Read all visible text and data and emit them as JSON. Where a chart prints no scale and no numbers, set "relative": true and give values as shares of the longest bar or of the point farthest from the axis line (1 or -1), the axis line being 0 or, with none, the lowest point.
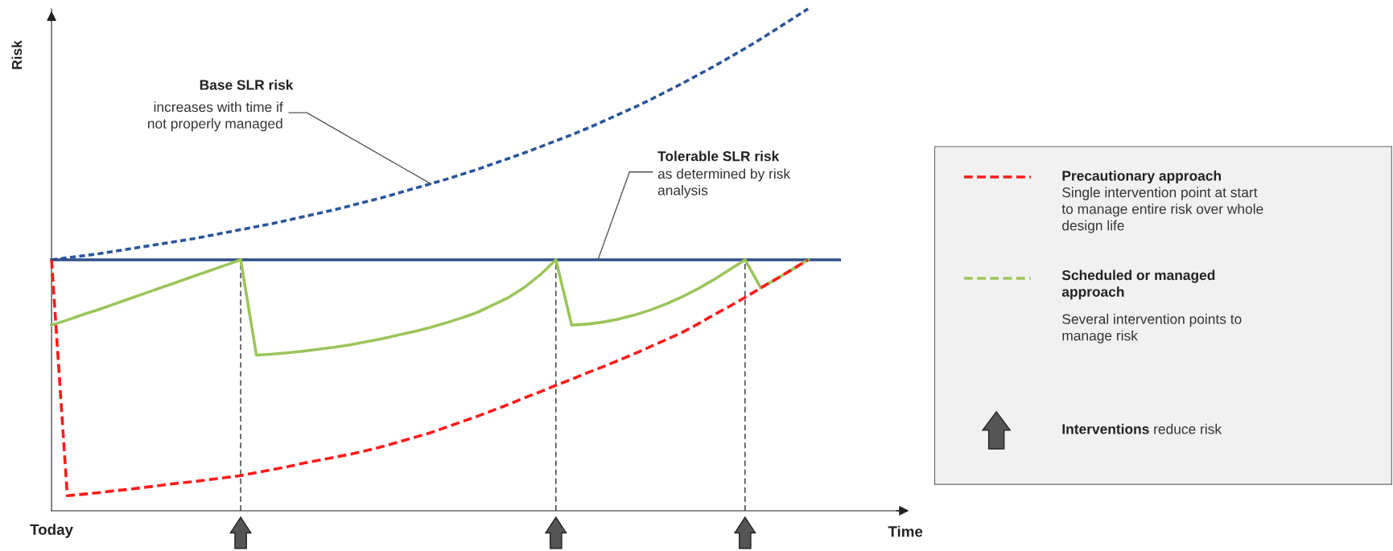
{
  "chart_data": {
    "type": "line",
    "relative": true,
    "xlabel": "Time",
    "ylabel": "Risk",
    "legend": "right",
    "grid": false,
    "categories": [
      null,
      null,
      null,
      null,
      null,
      null,
      null,
      null,
      null,
      null,
      null,
      null,
      null,
      null,
      null,
      null,
      null,
      null,
      null,
      null,
      null,
      null,
      null,
      null,
      null,
      null,
      null,
      null,
      null,
      null,
      null,
      null,
      null,
      null,
      null,
      null,
      null,
      null,
      null,
      null,
      null,
      null,
      null,
      null,
      null,
      null,
      null,
      null,
      null,
      null,
      null,
      null,
      null,
      null
    ],
    "series": [
      {
        "color": "#2a5699",
        "line_style": "dotted",
        "values": [
          0.5,
          0.504,
          0.508,
          0.512,
          0.517,
          0.522,
          0.527,
          0.532,
          0.537,
          0.542,
          0.548,
          0.554,
          0.56,
          0.566,
          0.572,
          0.579,
          0.586,
          0.593,
          0.6,
          0.608,
          0.616,
          0.624,
          0.633,
          0.642,
          0.651,
          0.66,
          0.67,
          0.68,
          0.691,
          0.702,
          0.713,
          0.725,
          0.737,
          0.749,
          0.762,
          0.776,
          0.79,
          0.804,
          0.819,
          0.835,
          0.851,
          0.868,
          0.885,
          0.903,
          0.921,
          0.94,
          0.96,
          0.98,
          1.0,
          null,
          null,
          null,
          null,
          null
        ]
      },
      {
        "color": "#2e4f8a",
        "line_style": "solid",
        "values": [
          0.5,
          0.5,
          0.5,
          0.5,
          0.5,
          0.5,
          0.5,
          0.5,
          0.5,
          0.5,
          0.5,
          0.5,
          0.5,
          0.5,
          0.5,
          0.5,
          0.5,
          0.5,
          0.5,
          0.5,
          0.5,
          0.5,
          0.5,
          0.5,
          0.5,
          0.5,
          0.5,
          0.5,
          0.5,
          0.5,
          0.5,
          0.5,
          0.5,
          0.5,
          0.5,
          0.5,
          0.5,
          0.5,
          0.5,
          0.5,
          0.5,
          0.5,
          0.5,
          0.5,
          0.5,
          0.5,
          0.5,
          0.5,
          0.5,
          0.5,
          0.5,
          null,
          null,
          null
        ]
      },
      {
        "name": "Scheduled or managed approach",
        "color": "#9bc55a",
        "line_style": "solid",
        "values": [
          0.37,
          0.38,
          0.391,
          0.401,
          0.412,
          0.423,
          0.434,
          0.445,
          0.456,
          0.467,
          0.478,
          0.489,
          0.5,
          0.31,
          0.312,
          0.315,
          0.318,
          0.322,
          0.326,
          0.331,
          0.337,
          0.343,
          0.35,
          0.357,
          0.365,
          0.374,
          0.384,
          0.395,
          0.41,
          0.425,
          0.445,
          0.47,
          0.5,
          0.37,
          0.372,
          0.376,
          0.382,
          0.39,
          0.4,
          0.412,
          0.426,
          0.442,
          0.46,
          0.48,
          0.5,
          0.444,
          0.462,
          0.481,
          0.5,
          null,
          null,
          null,
          null,
          null
        ]
      },
      {
        "name": "Precautionary approach",
        "color": "#ff1a1a",
        "line_style": "dashed",
        "values": [
          0.5,
          0.03,
          0.033,
          0.036,
          0.04,
          0.043,
          0.047,
          0.051,
          0.055,
          0.058,
          0.062,
          0.066,
          0.07,
          0.076,
          0.082,
          0.088,
          0.095,
          0.101,
          0.107,
          0.113,
          0.12,
          0.128,
          0.137,
          0.146,
          0.155,
          0.166,
          0.177,
          0.188,
          0.2,
          0.212,
          0.225,
          0.237,
          0.25,
          0.262,
          0.275,
          0.287,
          0.3,
          0.313,
          0.327,
          0.341,
          0.355,
          0.372,
          0.39,
          0.407,
          0.425,
          0.444,
          0.462,
          0.481,
          0.5,
          null,
          null,
          null,
          null,
          null
        ]
      }
    ],
    "annotations": [
      "Today",
      "Base SLR risk",
      "increases with time if\nnot properly managed",
      "Tolerable SLR risk",
      "as determined by risk\nanalysis",
      "Single intervention point at start\nto manage entire risk over whole\ndesign life",
      "Several intervention points to\nmanage risk",
      "Interventions",
      "reduce risk"
    ]
  }
}
